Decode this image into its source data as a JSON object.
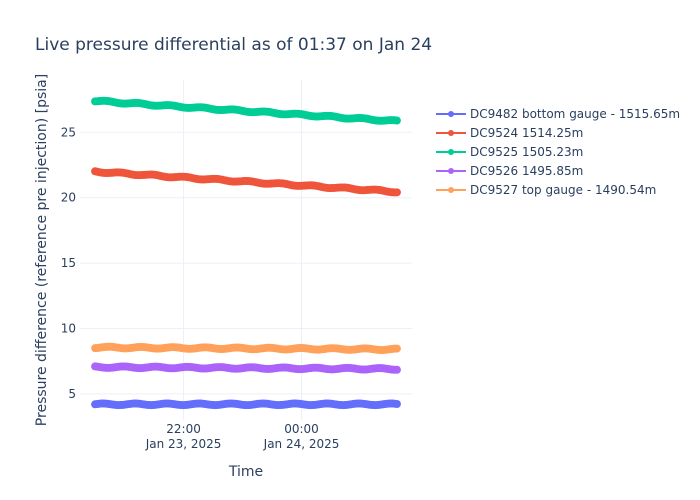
{
  "chart_data": {
    "type": "scatter",
    "title": "Live pressure differential as of 01:37 on Jan 24",
    "xlabel": "Time",
    "ylabel": "Pressure difference (reference pre injection) [psia]",
    "x_range": [
      "2025-01-23 20:30",
      "2025-01-24 01:37"
    ],
    "ylim": [
      3.0,
      29.0
    ],
    "x_ticks": [
      {
        "x": "2025-01-23 22:00",
        "line1": "22:00",
        "line2": "Jan 23, 2025"
      },
      {
        "x": "2025-01-24 00:00",
        "line1": "00:00",
        "line2": "Jan 24, 2025"
      }
    ],
    "y_ticks": [
      5,
      10,
      15,
      20,
      25
    ],
    "grid": true,
    "legend_position": "right",
    "series": [
      {
        "name": "DC9482 bottom gauge - 1515.65m",
        "color": "#636efa",
        "x": [
          "2025-01-23 20:30",
          "2025-01-24 01:37"
        ],
        "y": [
          4.2,
          4.2
        ]
      },
      {
        "name": "DC9524 1514.25m",
        "color": "#ef553b",
        "x": [
          "2025-01-23 20:30",
          "2025-01-24 01:37"
        ],
        "y": [
          22.0,
          20.45
        ]
      },
      {
        "name": "DC9525 1505.23m",
        "color": "#00cc96",
        "x": [
          "2025-01-23 20:30",
          "2025-01-24 01:37"
        ],
        "y": [
          27.4,
          25.85
        ]
      },
      {
        "name": "DC9526 1495.85m",
        "color": "#ab63fa",
        "x": [
          "2025-01-23 20:30",
          "2025-01-24 01:37"
        ],
        "y": [
          7.05,
          6.9
        ]
      },
      {
        "name": "DC9527 top gauge - 1490.54m",
        "color": "#ffa15a",
        "x": [
          "2025-01-23 20:30",
          "2025-01-24 01:37"
        ],
        "y": [
          8.55,
          8.4
        ]
      }
    ]
  }
}
